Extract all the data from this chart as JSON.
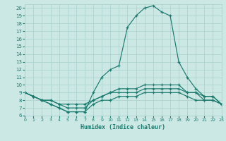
{
  "xlabel": "Humidex (Indice chaleur)",
  "xlim": [
    0,
    23
  ],
  "ylim": [
    6,
    20.5
  ],
  "yticks": [
    6,
    7,
    8,
    9,
    10,
    11,
    12,
    13,
    14,
    15,
    16,
    17,
    18,
    19,
    20
  ],
  "xticks": [
    0,
    1,
    2,
    3,
    4,
    5,
    6,
    7,
    8,
    9,
    10,
    11,
    12,
    13,
    14,
    15,
    16,
    17,
    18,
    19,
    20,
    21,
    22,
    23
  ],
  "line_color": "#1a7a6e",
  "bg_color": "#cce8e5",
  "grid_color": "#a8d0cc",
  "line1_x": [
    0,
    1,
    2,
    3,
    4,
    5,
    6,
    7,
    8,
    9,
    10,
    11,
    12,
    13,
    14,
    15,
    16,
    17,
    18,
    19,
    20,
    21,
    22,
    23
  ],
  "line1_y": [
    9.0,
    8.5,
    8.0,
    7.5,
    7.0,
    6.5,
    6.5,
    6.5,
    9.0,
    11.0,
    12.0,
    12.5,
    17.5,
    19.0,
    20.0,
    20.3,
    19.5,
    19.0,
    13.0,
    11.0,
    9.5,
    8.5,
    8.5,
    7.5
  ],
  "line2_x": [
    0,
    1,
    2,
    3,
    4,
    5,
    6,
    7,
    8,
    9,
    10,
    11,
    12,
    13,
    14,
    15,
    16,
    17,
    18,
    19,
    20,
    21,
    22,
    23
  ],
  "line2_y": [
    9.0,
    8.5,
    8.0,
    8.0,
    7.5,
    7.5,
    7.5,
    7.5,
    8.0,
    8.5,
    9.0,
    9.5,
    9.5,
    9.5,
    10.0,
    10.0,
    10.0,
    10.0,
    10.0,
    9.0,
    9.0,
    8.5,
    8.5,
    7.5
  ],
  "line3_x": [
    0,
    1,
    2,
    3,
    4,
    5,
    6,
    7,
    8,
    9,
    10,
    11,
    12,
    13,
    14,
    15,
    16,
    17,
    18,
    19,
    20,
    21,
    22,
    23
  ],
  "line3_y": [
    9.0,
    8.5,
    8.0,
    8.0,
    7.5,
    7.0,
    7.0,
    7.0,
    8.0,
    8.5,
    9.0,
    9.0,
    9.0,
    9.0,
    9.5,
    9.5,
    9.5,
    9.5,
    9.5,
    9.0,
    9.0,
    8.0,
    8.0,
    7.5
  ],
  "line4_x": [
    0,
    1,
    2,
    3,
    4,
    5,
    6,
    7,
    8,
    9,
    10,
    11,
    12,
    13,
    14,
    15,
    16,
    17,
    18,
    19,
    20,
    21,
    22,
    23
  ],
  "line4_y": [
    9.0,
    8.5,
    8.0,
    7.5,
    7.0,
    6.5,
    6.5,
    6.5,
    7.5,
    8.0,
    8.0,
    8.5,
    8.5,
    8.5,
    9.0,
    9.0,
    9.0,
    9.0,
    9.0,
    8.5,
    8.0,
    8.0,
    8.0,
    7.5
  ]
}
